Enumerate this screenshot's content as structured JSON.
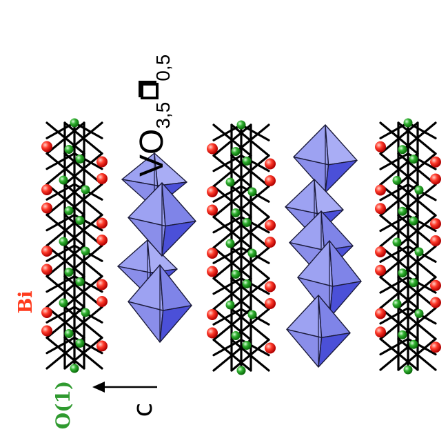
{
  "labels": {
    "bi": "Bi",
    "o1": "O(1)",
    "axis": "c",
    "formula_main": "VO",
    "formula_sub1": "3,5",
    "formula_sub2": "0,5"
  },
  "colors": {
    "bi_atom": "#ff2a1a",
    "o1_atom": "#27a82a",
    "bonds": "#000000",
    "octahedron_light": "#9da2f2",
    "octahedron_dark": "#4b50d8",
    "octahedron_edge": "#1a1a3a"
  },
  "icons": {
    "vacancy": "vacancy-square-icon",
    "axis_arrow": "left-arrow-icon"
  }
}
